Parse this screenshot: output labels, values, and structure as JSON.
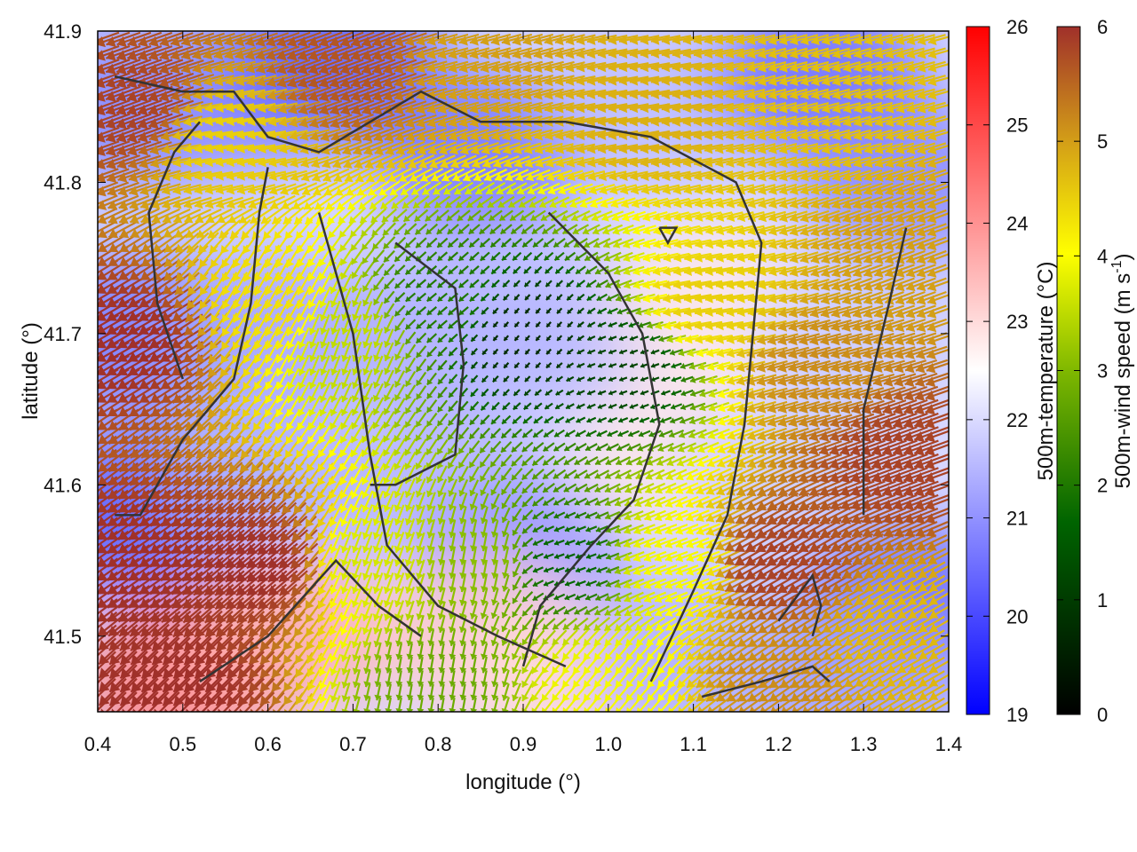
{
  "chart_data": {
    "type": "heatmap",
    "title": "",
    "xlabel": "longitude (°)",
    "ylabel": "latitude (°)",
    "xlim": [
      0.4,
      1.4
    ],
    "ylim": [
      41.45,
      41.9
    ],
    "x_ticks": [
      0.4,
      0.5,
      0.6,
      0.7,
      0.8,
      0.9,
      1.0,
      1.1,
      1.2,
      1.3,
      1.4
    ],
    "x_tick_labels": [
      "0.4",
      "0.5",
      "0.6",
      "0.7",
      "0.8",
      "0.9",
      "1.0",
      "1.1",
      "1.2",
      "1.3",
      "1.4"
    ],
    "y_ticks": [
      41.5,
      41.6,
      41.7,
      41.8,
      41.9
    ],
    "y_tick_labels": [
      "41.5",
      "41.6",
      "41.7",
      "41.8",
      "41.9"
    ],
    "temperature": {
      "label": "500m-temperature (°C)",
      "range": [
        19,
        26
      ],
      "ticks": [
        19,
        20,
        21,
        22,
        23,
        24,
        25,
        26
      ],
      "tick_labels": [
        "19",
        "20",
        "21",
        "22",
        "23",
        "24",
        "25",
        "26"
      ],
      "colormap": [
        "#0000ff",
        "#ffffff",
        "#ff0000"
      ]
    },
    "wind_speed": {
      "label_prefix": "500m-wind speed (m s",
      "label_exp": "-1",
      "label_suffix": ")",
      "range": [
        0,
        6
      ],
      "ticks": [
        0,
        1,
        2,
        3,
        4,
        5,
        6
      ],
      "tick_labels": [
        "0",
        "1",
        "2",
        "3",
        "4",
        "5",
        "6"
      ],
      "colormap": [
        "#000000",
        "#006400",
        "#7fb800",
        "#ffff00",
        "#d4a017",
        "#a0302a"
      ]
    },
    "temperature_field": [
      {
        "lon": 0.45,
        "lat": 41.85,
        "t": 20.8
      },
      {
        "lon": 0.55,
        "lat": 41.86,
        "t": 21.0
      },
      {
        "lon": 0.68,
        "lat": 41.88,
        "t": 20.3
      },
      {
        "lon": 0.85,
        "lat": 41.82,
        "t": 20.6
      },
      {
        "lon": 1.05,
        "lat": 41.85,
        "t": 21.6
      },
      {
        "lon": 1.25,
        "lat": 41.87,
        "t": 20.5
      },
      {
        "lon": 1.35,
        "lat": 41.8,
        "t": 20.9
      },
      {
        "lon": 0.45,
        "lat": 41.7,
        "t": 20.6
      },
      {
        "lon": 0.6,
        "lat": 41.7,
        "t": 21.3
      },
      {
        "lon": 0.8,
        "lat": 41.7,
        "t": 21.4
      },
      {
        "lon": 0.95,
        "lat": 41.7,
        "t": 21.5
      },
      {
        "lon": 1.12,
        "lat": 41.72,
        "t": 22.8
      },
      {
        "lon": 1.3,
        "lat": 41.7,
        "t": 21.8
      },
      {
        "lon": 0.45,
        "lat": 41.58,
        "t": 20.2
      },
      {
        "lon": 0.6,
        "lat": 41.6,
        "t": 21.4
      },
      {
        "lon": 0.8,
        "lat": 41.6,
        "t": 21.5
      },
      {
        "lon": 0.9,
        "lat": 41.55,
        "t": 21.0
      },
      {
        "lon": 1.08,
        "lat": 41.62,
        "t": 22.8
      },
      {
        "lon": 1.2,
        "lat": 41.6,
        "t": 21.8
      },
      {
        "lon": 1.35,
        "lat": 41.52,
        "t": 20.4
      },
      {
        "lon": 0.5,
        "lat": 41.47,
        "t": 24.2
      },
      {
        "lon": 0.62,
        "lat": 41.5,
        "t": 23.6
      },
      {
        "lon": 0.85,
        "lat": 41.5,
        "t": 23.2
      },
      {
        "lon": 0.95,
        "lat": 41.47,
        "t": 23.0
      },
      {
        "lon": 1.1,
        "lat": 41.48,
        "t": 21.4
      },
      {
        "lon": 1.3,
        "lat": 41.47,
        "t": 21.2
      }
    ],
    "wind_field": [
      {
        "lon": 0.45,
        "lat": 41.85,
        "speed": 5.8,
        "dir_deg": 200
      },
      {
        "lon": 0.55,
        "lat": 41.83,
        "speed": 4.2,
        "dir_deg": 190
      },
      {
        "lon": 0.7,
        "lat": 41.88,
        "speed": 5.6,
        "dir_deg": 200
      },
      {
        "lon": 0.85,
        "lat": 41.88,
        "speed": 4.8,
        "dir_deg": 195
      },
      {
        "lon": 1.05,
        "lat": 41.85,
        "speed": 4.6,
        "dir_deg": 190
      },
      {
        "lon": 1.25,
        "lat": 41.85,
        "speed": 4.4,
        "dir_deg": 195
      },
      {
        "lon": 1.35,
        "lat": 41.75,
        "speed": 4.8,
        "dir_deg": 200
      },
      {
        "lon": 0.45,
        "lat": 41.7,
        "speed": 6.0,
        "dir_deg": 210
      },
      {
        "lon": 0.6,
        "lat": 41.72,
        "speed": 4.0,
        "dir_deg": 240
      },
      {
        "lon": 0.7,
        "lat": 41.7,
        "speed": 3.0,
        "dir_deg": 250
      },
      {
        "lon": 0.8,
        "lat": 41.72,
        "speed": 1.5,
        "dir_deg": 220
      },
      {
        "lon": 0.9,
        "lat": 41.7,
        "speed": 0.5,
        "dir_deg": 230
      },
      {
        "lon": 1.02,
        "lat": 41.68,
        "speed": 0.8,
        "dir_deg": 200
      },
      {
        "lon": 1.12,
        "lat": 41.72,
        "speed": 4.2,
        "dir_deg": 190
      },
      {
        "lon": 1.25,
        "lat": 41.68,
        "speed": 5.0,
        "dir_deg": 195
      },
      {
        "lon": 1.35,
        "lat": 41.62,
        "speed": 5.8,
        "dir_deg": 200
      },
      {
        "lon": 0.45,
        "lat": 41.55,
        "speed": 6.0,
        "dir_deg": 215
      },
      {
        "lon": 0.6,
        "lat": 41.55,
        "speed": 6.0,
        "dir_deg": 220
      },
      {
        "lon": 0.72,
        "lat": 41.55,
        "speed": 3.2,
        "dir_deg": 250
      },
      {
        "lon": 0.85,
        "lat": 41.55,
        "speed": 2.5,
        "dir_deg": 260
      },
      {
        "lon": 0.95,
        "lat": 41.55,
        "speed": 1.2,
        "dir_deg": 200
      },
      {
        "lon": 1.08,
        "lat": 41.55,
        "speed": 3.5,
        "dir_deg": 200
      },
      {
        "lon": 1.2,
        "lat": 41.55,
        "speed": 5.8,
        "dir_deg": 210
      },
      {
        "lon": 1.35,
        "lat": 41.5,
        "speed": 4.5,
        "dir_deg": 210
      },
      {
        "lon": 0.5,
        "lat": 41.47,
        "speed": 6.0,
        "dir_deg": 225
      },
      {
        "lon": 0.8,
        "lat": 41.47,
        "speed": 2.2,
        "dir_deg": 260
      },
      {
        "lon": 1.0,
        "lat": 41.47,
        "speed": 3.5,
        "dir_deg": 230
      },
      {
        "lon": 1.2,
        "lat": 41.47,
        "speed": 5.0,
        "dir_deg": 215
      }
    ],
    "contours": [
      [
        [
          0.42,
          41.87
        ],
        [
          0.5,
          41.86
        ],
        [
          0.56,
          41.86
        ],
        [
          0.6,
          41.83
        ],
        [
          0.66,
          41.82
        ],
        [
          0.72,
          41.84
        ],
        [
          0.78,
          41.86
        ],
        [
          0.85,
          41.84
        ],
        [
          0.95,
          41.84
        ],
        [
          1.05,
          41.83
        ],
        [
          1.15,
          41.8
        ],
        [
          1.18,
          41.76
        ],
        [
          1.17,
          41.7
        ],
        [
          1.16,
          41.64
        ],
        [
          1.14,
          41.58
        ],
        [
          1.1,
          41.53
        ],
        [
          1.05,
          41.47
        ]
      ],
      [
        [
          0.42,
          41.58
        ],
        [
          0.45,
          41.58
        ],
        [
          0.5,
          41.63
        ],
        [
          0.56,
          41.67
        ],
        [
          0.58,
          41.72
        ],
        [
          0.59,
          41.78
        ],
        [
          0.6,
          41.81
        ]
      ],
      [
        [
          0.5,
          41.67
        ],
        [
          0.47,
          41.72
        ],
        [
          0.46,
          41.78
        ],
        [
          0.49,
          41.82
        ],
        [
          0.52,
          41.84
        ]
      ],
      [
        [
          0.66,
          41.78
        ],
        [
          0.7,
          41.7
        ],
        [
          0.72,
          41.62
        ],
        [
          0.74,
          41.56
        ],
        [
          0.8,
          41.52
        ],
        [
          0.87,
          41.5
        ],
        [
          0.95,
          41.48
        ]
      ],
      [
        [
          0.75,
          41.76
        ],
        [
          0.82,
          41.73
        ],
        [
          0.83,
          41.68
        ],
        [
          0.82,
          41.62
        ],
        [
          0.75,
          41.6
        ],
        [
          0.72,
          41.6
        ]
      ],
      [
        [
          0.93,
          41.78
        ],
        [
          1.0,
          41.74
        ],
        [
          1.04,
          41.7
        ],
        [
          1.06,
          41.64
        ],
        [
          1.03,
          41.59
        ],
        [
          0.98,
          41.56
        ],
        [
          0.92,
          41.52
        ],
        [
          0.9,
          41.48
        ]
      ],
      [
        [
          0.52,
          41.47
        ],
        [
          0.6,
          41.5
        ],
        [
          0.68,
          41.55
        ],
        [
          0.73,
          41.52
        ],
        [
          0.78,
          41.5
        ]
      ],
      [
        [
          1.11,
          41.46
        ],
        [
          1.18,
          41.47
        ],
        [
          1.24,
          41.48
        ],
        [
          1.26,
          41.47
        ]
      ],
      [
        [
          1.2,
          41.51
        ],
        [
          1.24,
          41.54
        ],
        [
          1.25,
          41.52
        ],
        [
          1.24,
          41.5
        ]
      ],
      [
        [
          1.3,
          41.58
        ],
        [
          1.3,
          41.65
        ],
        [
          1.33,
          41.72
        ],
        [
          1.35,
          41.77
        ]
      ],
      [
        [
          1.06,
          41.77
        ],
        [
          1.08,
          41.77
        ],
        [
          1.07,
          41.76
        ],
        [
          1.06,
          41.77
        ]
      ]
    ]
  }
}
